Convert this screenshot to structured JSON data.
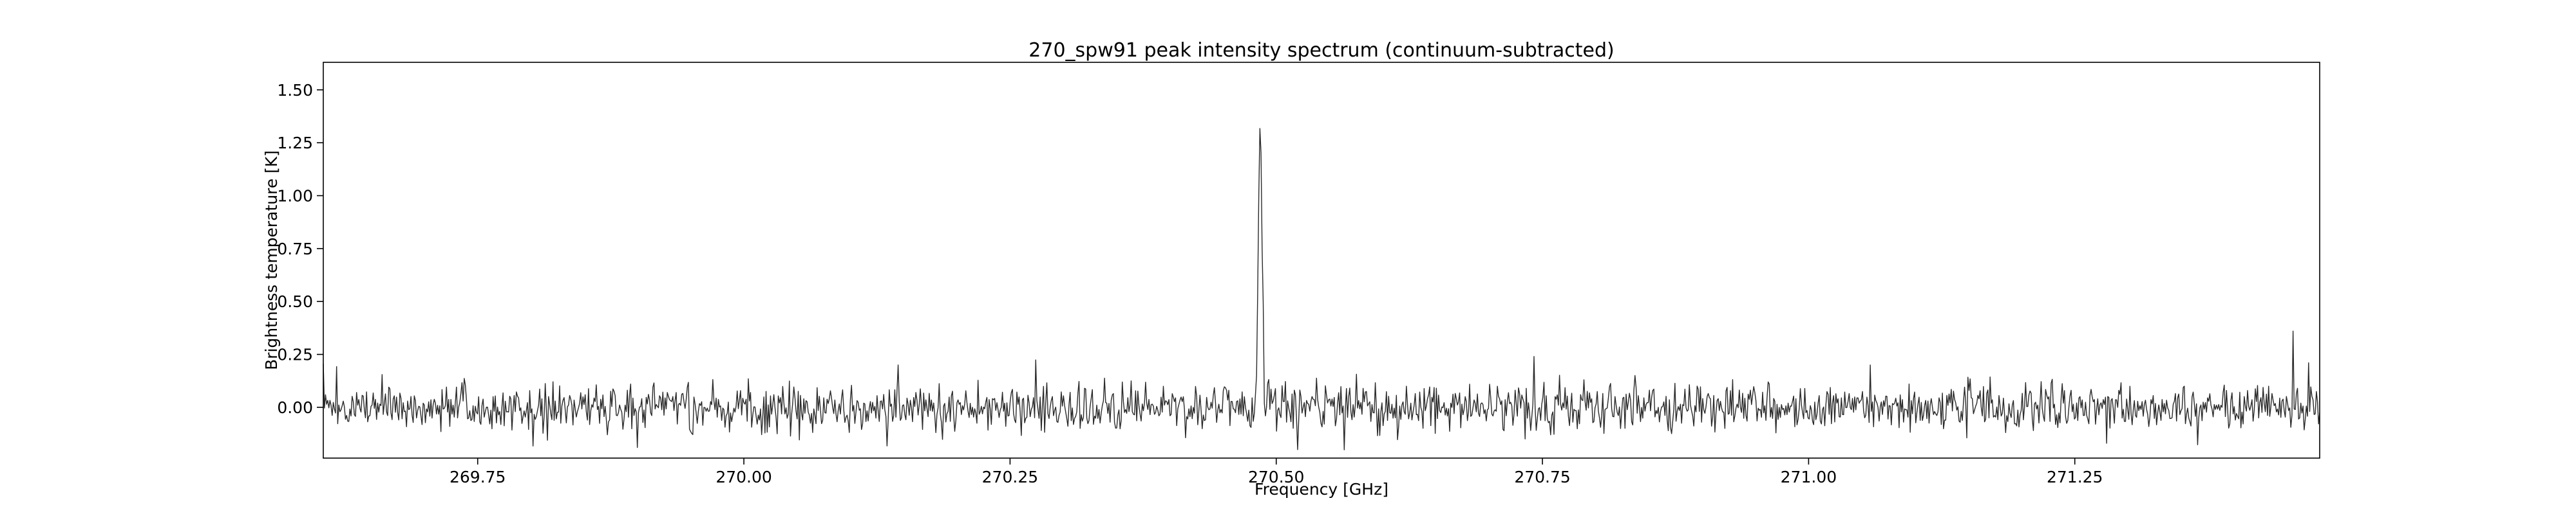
{
  "chart_data": {
    "type": "line",
    "title": "270_spw91 peak intensity spectrum (continuum-subtracted)",
    "xlabel": "Frequency [GHz]",
    "ylabel": "Brightness temperature [K]",
    "xlim": [
      269.605,
      271.48
    ],
    "ylim": [
      -0.24,
      1.63
    ],
    "x_ticks": [
      269.75,
      270.0,
      270.25,
      270.5,
      270.75,
      271.0,
      271.25
    ],
    "x_tick_labels": [
      "269.75",
      "270.00",
      "270.25",
      "270.50",
      "270.75",
      "271.00",
      "271.25"
    ],
    "y_ticks": [
      0.0,
      0.25,
      0.5,
      0.75,
      1.0,
      1.25,
      1.5
    ],
    "y_tick_labels": [
      "0.00",
      "0.25",
      "0.50",
      "0.75",
      "1.00",
      "1.25",
      "1.50"
    ],
    "grid": false,
    "legend": "none",
    "series": [
      {
        "name": "peak intensity spectrum",
        "x_start": 269.605,
        "x_end": 271.48,
        "n_channels": 1800,
        "noise_rms": 0.055,
        "baseline": 0.0,
        "lines": [
          {
            "center": 270.485,
            "peak": 1.31,
            "width_ghz": 0.0018
          }
        ],
        "spikes": [
          {
            "x": 270.145,
            "y": 0.2
          },
          {
            "x": 270.742,
            "y": 0.24
          },
          {
            "x": 271.058,
            "y": 0.2
          },
          {
            "x": 271.455,
            "y": 0.36
          },
          {
            "x": 271.47,
            "y": 0.21
          },
          {
            "x": 269.9,
            "y": -0.19
          },
          {
            "x": 270.52,
            "y": -0.2
          },
          {
            "x": 271.28,
            "y": -0.17
          }
        ]
      }
    ]
  }
}
